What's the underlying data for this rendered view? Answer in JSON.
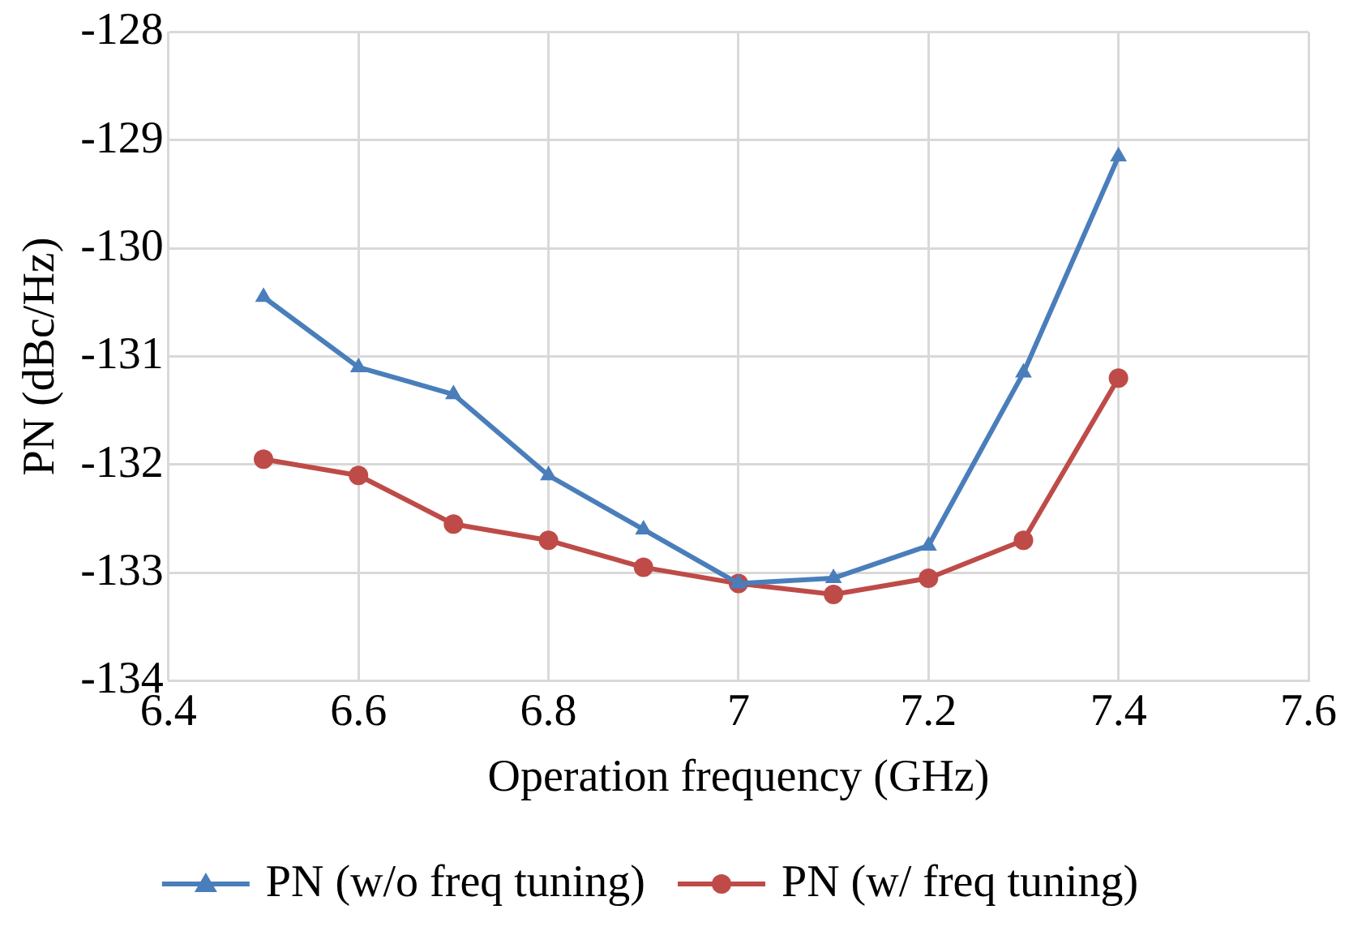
{
  "chart_data": {
    "type": "line",
    "xlabel": "Operation frequency (GHz)",
    "ylabel": "PN (dBc/Hz)",
    "x": [
      6.5,
      6.6,
      6.7,
      6.8,
      6.9,
      7.0,
      7.1,
      7.2,
      7.3,
      7.4
    ],
    "series": [
      {
        "name": "PN (w/o freq tuning)",
        "color": "#4a7ebb",
        "marker": "triangle",
        "values": [
          -130.45,
          -131.1,
          -131.35,
          -132.1,
          -132.6,
          -133.1,
          -133.05,
          -132.75,
          -131.15,
          -129.15
        ]
      },
      {
        "name": "PN (w/ freq tuning)",
        "color": "#be4b48",
        "marker": "circle",
        "values": [
          -131.95,
          -132.1,
          -132.55,
          -132.7,
          -132.95,
          -133.1,
          -133.2,
          -133.05,
          -132.7,
          -131.2
        ]
      }
    ],
    "xlim": [
      6.4,
      7.6
    ],
    "xticks": [
      6.4,
      6.6,
      6.8,
      7,
      7.2,
      7.4,
      7.6
    ],
    "ylim": [
      -134,
      -128
    ],
    "yticks": [
      -134,
      -133,
      -132,
      -131,
      -130,
      -129,
      -128
    ],
    "grid": true,
    "legend": "bottom",
    "line_style": "solid"
  }
}
